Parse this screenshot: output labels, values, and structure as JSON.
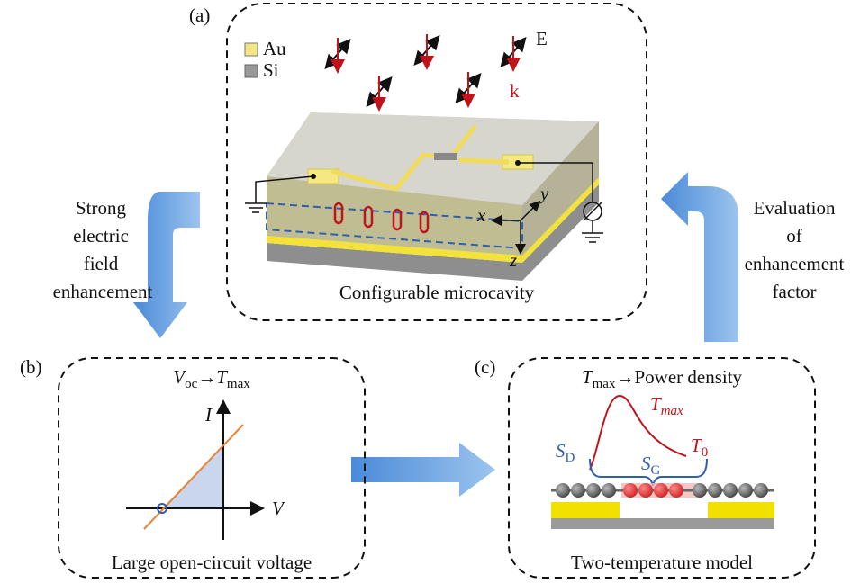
{
  "panel_a": {
    "label": "(a)",
    "legend": [
      "Au",
      "Si"
    ],
    "field_label": "E",
    "wave_label": "k",
    "axes": [
      "x",
      "y",
      "z"
    ],
    "caption": "Configurable microcavity"
  },
  "left_arrow_text": [
    "Strong",
    "electric",
    "field",
    "enhancement"
  ],
  "right_arrow_text": [
    "Evaluation",
    "of",
    "enhancement",
    "factor"
  ],
  "panel_b": {
    "label": "(b)",
    "formula": {
      "v": "V",
      "v_sub": "oc",
      "arrow": "→",
      "t": "T",
      "t_sub": "max"
    },
    "y_axis": "I",
    "x_axis": "V",
    "caption": "Large open-circuit voltage"
  },
  "panel_c": {
    "label": "(c)",
    "formula": {
      "t": "T",
      "t_sub": "max",
      "rest": "→Power density"
    },
    "peak": {
      "t": "T",
      "t_sub": "max"
    },
    "end": {
      "t": "T",
      "t_sub": "0"
    },
    "source": {
      "s": "S",
      "s_sub": "D"
    },
    "gate": {
      "s": "S",
      "s_sub": "G"
    },
    "caption": "Two-temperature model"
  }
}
